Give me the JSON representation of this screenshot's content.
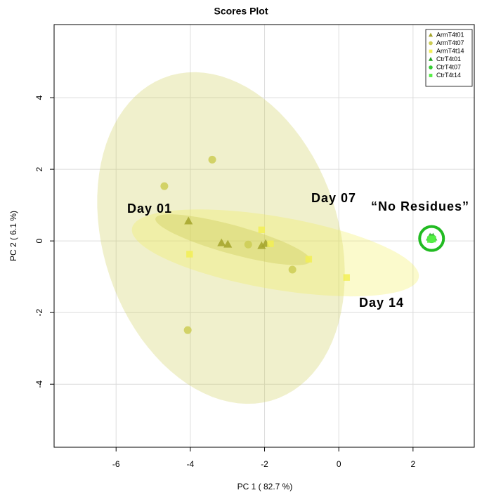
{
  "chart_data": {
    "type": "scatter",
    "title": "Scores Plot",
    "x_label": "PC 1 ( 82.7 %)",
    "y_label": "PC 2 ( 6.1 %)",
    "xlim": [
      -7.67,
      3.65
    ],
    "ylim": [
      -5.76,
      6.04
    ],
    "xticks": [
      -6,
      -4,
      -2,
      0,
      2
    ],
    "yticks": [
      -4,
      -2,
      0,
      2,
      4
    ],
    "grid": true,
    "legend": "top-right",
    "series": [
      {
        "name": "ArmT4t01",
        "color": "#a3a32a",
        "marker": "triangle",
        "ellipse": true,
        "x": [
          -4.05,
          -3.16,
          -2.99,
          -2.08,
          -1.97
        ],
        "values": [
          0.55,
          -0.06,
          -0.1,
          -0.14,
          -0.08
        ]
      },
      {
        "name": "ArmT4t07",
        "color": "#cccc55",
        "marker": "circle",
        "ellipse": true,
        "x": [
          -3.41,
          -4.7,
          -2.44,
          -1.25,
          -4.07
        ],
        "values": [
          2.27,
          1.53,
          -0.1,
          -0.8,
          -2.49
        ]
      },
      {
        "name": "ArmT4t14",
        "color": "#f2ee55",
        "marker": "square",
        "ellipse": true,
        "x": [
          -2.08,
          -4.02,
          -1.84,
          -0.81,
          0.21
        ],
        "values": [
          0.31,
          -0.37,
          -0.08,
          -0.51,
          -1.02
        ]
      },
      {
        "name": "CtrT4t01",
        "color": "#22a022",
        "marker": "triangle",
        "ellipse": false,
        "x": [
          2.46,
          2.5,
          2.54
        ],
        "values": [
          0.1,
          0.08,
          0.1
        ]
      },
      {
        "name": "CtrT4t07",
        "color": "#33cc33",
        "marker": "circle",
        "ellipse": false,
        "x": [
          2.48,
          2.52,
          2.5
        ],
        "values": [
          0.06,
          0.07,
          0.05
        ]
      },
      {
        "name": "CtrT4t14",
        "color": "#55ee44",
        "marker": "square",
        "ellipse": false,
        "x": [
          2.47,
          2.53,
          2.5
        ],
        "values": [
          0.04,
          0.05,
          0.06
        ]
      }
    ],
    "annotations": [
      {
        "text": "Day 01",
        "color": "#9b9a2a"
      },
      {
        "text": "Day 07",
        "color": "#cccc44"
      },
      {
        "text": "Day 14",
        "color": "#eeee22"
      },
      {
        "text": "“No Residues”",
        "color": "#22cc22"
      }
    ]
  }
}
